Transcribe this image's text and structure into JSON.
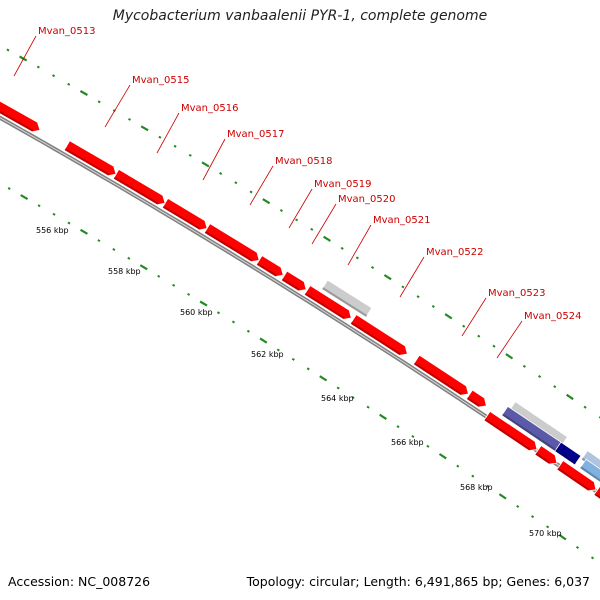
{
  "title": "Mycobacterium vanbaalenii PYR-1, complete genome",
  "footer": {
    "accession": "Accession: NC_008726",
    "summary": "Topology: circular; Length: 6,491,865 bp; Genes: 6,037"
  },
  "colors": {
    "gene_forward": "#ff0000",
    "gene_other": "#cccccc",
    "gene_dark": "#00008b",
    "gene_light": "#7fb2e0",
    "backbone": "#808080",
    "ticks": "#228b22",
    "labels": "#cc0000"
  },
  "gene_labels": [
    {
      "name": "Mvan_0513"
    },
    {
      "name": "Mvan_0515"
    },
    {
      "name": "Mvan_0516"
    },
    {
      "name": "Mvan_0517"
    },
    {
      "name": "Mvan_0518"
    },
    {
      "name": "Mvan_0519"
    },
    {
      "name": "Mvan_0520"
    },
    {
      "name": "Mvan_0521"
    },
    {
      "name": "Mvan_0522"
    },
    {
      "name": "Mvan_0523"
    },
    {
      "name": "Mvan_0524"
    }
  ],
  "scale_labels": [
    "556 kbp",
    "558 kbp",
    "560 kbp",
    "562 kbp",
    "564 kbp",
    "566 kbp",
    "568 kbp",
    "570 kbp"
  ]
}
